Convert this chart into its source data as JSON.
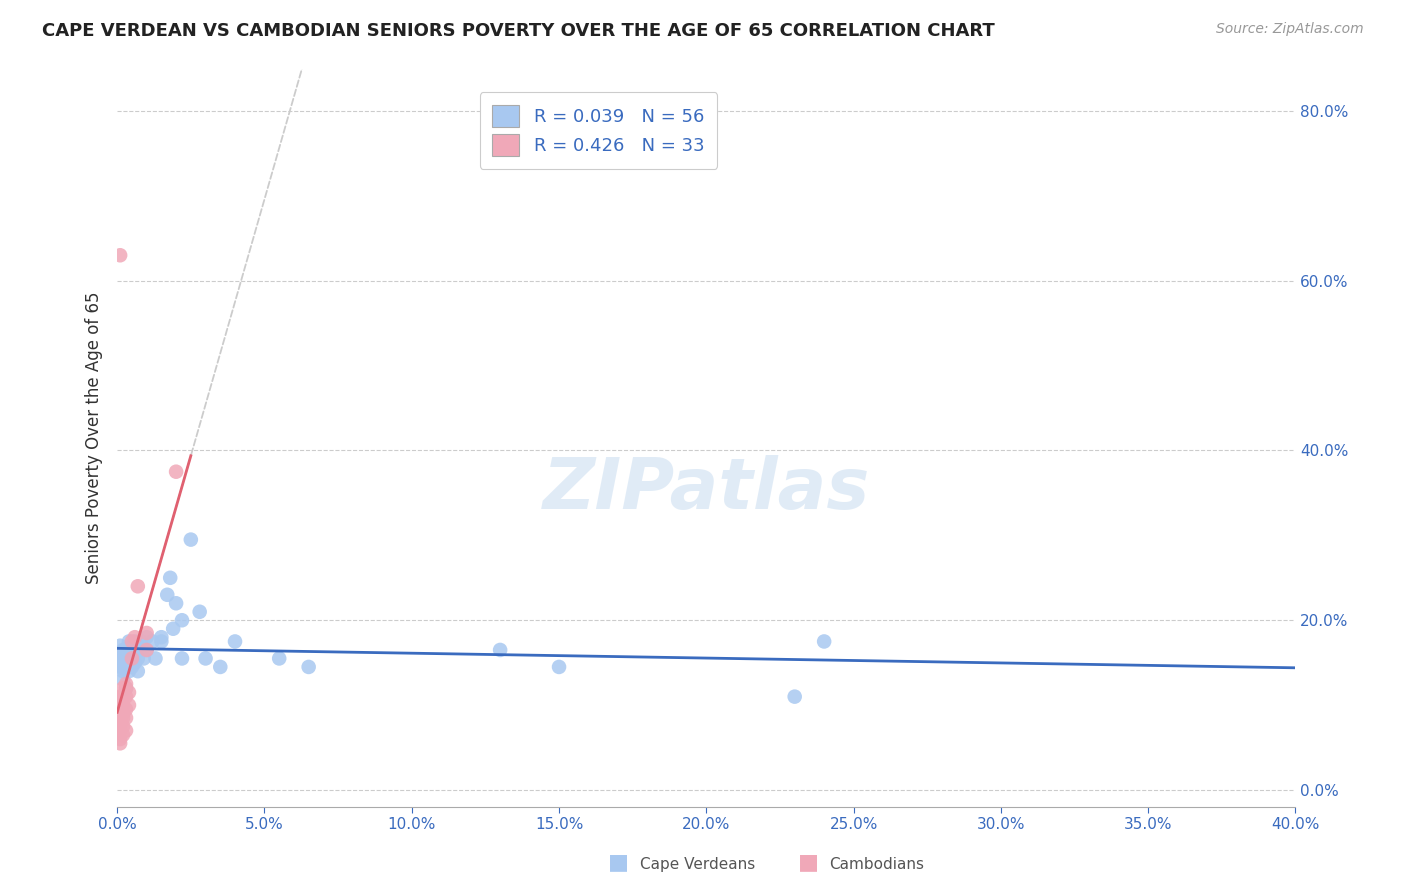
{
  "title": "CAPE VERDEAN VS CAMBODIAN SENIORS POVERTY OVER THE AGE OF 65 CORRELATION CHART",
  "source": "Source: ZipAtlas.com",
  "ylabel": "Seniors Poverty Over the Age of 65",
  "xlim": [
    0.0,
    0.4
  ],
  "ylim": [
    -0.02,
    0.85
  ],
  "xticks": [
    0.0,
    0.05,
    0.1,
    0.15,
    0.2,
    0.25,
    0.3,
    0.35,
    0.4
  ],
  "yticks": [
    0.0,
    0.2,
    0.4,
    0.6,
    0.8
  ],
  "background_color": "#ffffff",
  "grid_color": "#cccccc",
  "cape_verdean_color": "#a8c8f0",
  "cambodian_color": "#f0a8b8",
  "cape_verdean_R": 0.039,
  "cape_verdean_N": 56,
  "cambodian_R": 0.426,
  "cambodian_N": 33,
  "cape_verdean_line_color": "#3a6bbf",
  "cambodian_line_color": "#e06070",
  "watermark_text": "ZIPatlas",
  "cape_verdean_x": [
    0.001,
    0.001,
    0.001,
    0.001,
    0.001,
    0.002,
    0.002,
    0.002,
    0.002,
    0.002,
    0.002,
    0.003,
    0.003,
    0.003,
    0.003,
    0.003,
    0.003,
    0.004,
    0.004,
    0.004,
    0.004,
    0.004,
    0.005,
    0.005,
    0.005,
    0.006,
    0.006,
    0.006,
    0.007,
    0.007,
    0.007,
    0.008,
    0.009,
    0.01,
    0.01,
    0.012,
    0.013,
    0.015,
    0.015,
    0.017,
    0.018,
    0.019,
    0.02,
    0.022,
    0.022,
    0.025,
    0.028,
    0.03,
    0.035,
    0.04,
    0.055,
    0.065,
    0.13,
    0.15,
    0.23,
    0.24
  ],
  "cape_verdean_y": [
    0.155,
    0.145,
    0.16,
    0.17,
    0.155,
    0.13,
    0.145,
    0.155,
    0.16,
    0.165,
    0.14,
    0.12,
    0.15,
    0.165,
    0.145,
    0.155,
    0.16,
    0.14,
    0.155,
    0.165,
    0.175,
    0.16,
    0.145,
    0.155,
    0.17,
    0.15,
    0.16,
    0.175,
    0.14,
    0.155,
    0.17,
    0.175,
    0.155,
    0.165,
    0.18,
    0.175,
    0.155,
    0.175,
    0.18,
    0.23,
    0.25,
    0.19,
    0.22,
    0.155,
    0.2,
    0.295,
    0.21,
    0.155,
    0.145,
    0.175,
    0.155,
    0.145,
    0.165,
    0.145,
    0.11,
    0.175
  ],
  "cambodian_x": [
    0.001,
    0.001,
    0.001,
    0.001,
    0.001,
    0.001,
    0.001,
    0.001,
    0.001,
    0.001,
    0.002,
    0.002,
    0.002,
    0.002,
    0.002,
    0.002,
    0.002,
    0.003,
    0.003,
    0.003,
    0.003,
    0.003,
    0.003,
    0.004,
    0.004,
    0.005,
    0.005,
    0.006,
    0.007,
    0.01,
    0.01,
    0.02,
    0.001
  ],
  "cambodian_y": [
    0.055,
    0.06,
    0.07,
    0.075,
    0.08,
    0.085,
    0.09,
    0.1,
    0.105,
    0.11,
    0.065,
    0.075,
    0.085,
    0.09,
    0.1,
    0.11,
    0.12,
    0.07,
    0.085,
    0.095,
    0.11,
    0.12,
    0.125,
    0.1,
    0.115,
    0.155,
    0.175,
    0.18,
    0.24,
    0.165,
    0.185,
    0.375,
    0.63
  ]
}
